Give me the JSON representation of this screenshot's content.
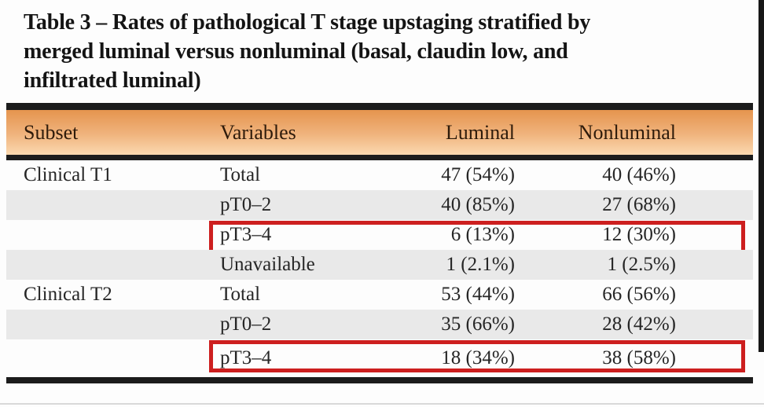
{
  "title_lines": [
    "Table 3 – Rates of pathological T stage upstaging stratified by",
    "merged luminal versus nonluminal (basal, claudin low, and",
    "infiltrated luminal)"
  ],
  "table": {
    "columns": [
      "Subset",
      "Variables",
      "Luminal",
      "Nonluminal"
    ],
    "rows": [
      {
        "subset": "Clinical T1",
        "variable": "Total",
        "luminal": "47 (54%)",
        "nonluminal": "40 (46%)",
        "shaded": false,
        "highlighted": false
      },
      {
        "subset": "",
        "variable": "pT0–2",
        "luminal": "40 (85%)",
        "nonluminal": "27 (68%)",
        "shaded": true,
        "highlighted": false
      },
      {
        "subset": "",
        "variable": "pT3–4",
        "luminal": "6 (13%)",
        "nonluminal": "12 (30%)",
        "shaded": false,
        "highlighted": true
      },
      {
        "subset": "",
        "variable": "Unavailable",
        "luminal": "1 (2.1%)",
        "nonluminal": "1 (2.5%)",
        "shaded": true,
        "highlighted": false
      },
      {
        "subset": "Clinical T2",
        "variable": "Total",
        "luminal": "53 (44%)",
        "nonluminal": "66 (56%)",
        "shaded": false,
        "highlighted": false
      },
      {
        "subset": "",
        "variable": "pT0–2",
        "luminal": "35 (66%)",
        "nonluminal": "28 (42%)",
        "shaded": true,
        "highlighted": false
      },
      {
        "subset": "",
        "variable": "pT3–4",
        "luminal": "18 (34%)",
        "nonluminal": "38 (58%)",
        "shaded": false,
        "highlighted": true
      }
    ]
  },
  "colors": {
    "header_gradient_top": "#e5944e",
    "header_gradient_bottom": "#fbd9b0",
    "row_stripe": "#e9e9e9",
    "highlight_red": "#cd1f1f",
    "rule_black": "#1c1c1c",
    "header_text": "#2e1b0b",
    "body_text": "#262626"
  }
}
